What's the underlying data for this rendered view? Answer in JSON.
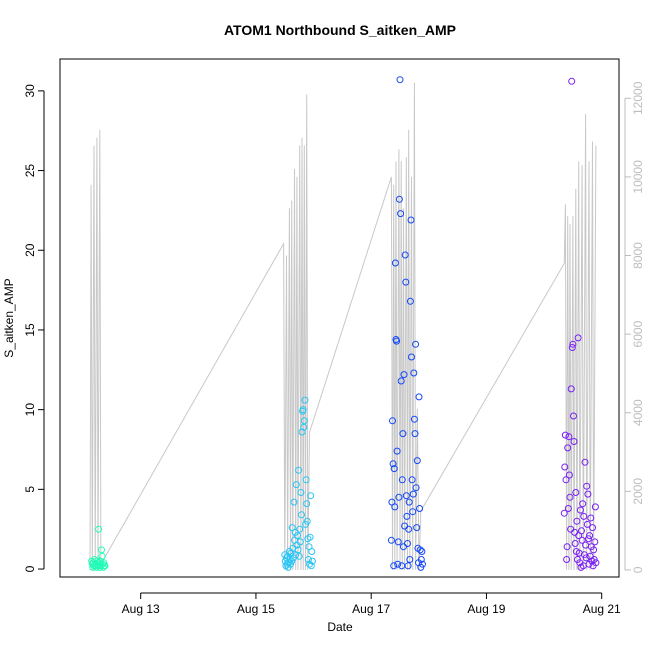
{
  "chart_data": {
    "type": "scatter",
    "title": "ATOM1 Northbound S_aitken_AMP",
    "xlabel": "Date",
    "ylabel": "S_aitken_AMP",
    "x_tick_labels": [
      "Aug 13",
      "Aug 15",
      "Aug 17",
      "Aug 19",
      "Aug 21"
    ],
    "x_tick_days": [
      13,
      15,
      17,
      19,
      21
    ],
    "xlim_days": [
      11.6,
      21.3
    ],
    "y_ticks": [
      0,
      5,
      10,
      15,
      20,
      25,
      30
    ],
    "ylim": [
      -0.5,
      32
    ],
    "y2_ticks": [
      0,
      2000,
      4000,
      6000,
      8000,
      10000,
      12000
    ],
    "y2lim": [
      -180,
      13000
    ],
    "colors": {
      "aug12": "#1ffcb6",
      "aug15": "#27c5f5",
      "aug17": "#1448f7",
      "aug20": "#7a1ff5",
      "secondary_line": "#c8c8c8",
      "right_axis": "#bdbdbd"
    },
    "series": [
      {
        "color_key": "aug12",
        "points": [
          [
            12.15,
            0.5
          ],
          [
            12.16,
            0.3
          ],
          [
            12.17,
            0.1
          ],
          [
            12.18,
            0.4
          ],
          [
            12.19,
            0.2
          ],
          [
            12.2,
            0.6
          ],
          [
            12.21,
            0.2
          ],
          [
            12.22,
            0.3
          ],
          [
            12.23,
            0.1
          ],
          [
            12.24,
            0.5
          ],
          [
            12.25,
            0.2
          ],
          [
            12.26,
            0.4
          ],
          [
            12.27,
            2.5
          ],
          [
            12.28,
            0.3
          ],
          [
            12.29,
            0.1
          ],
          [
            12.3,
            0.5
          ],
          [
            12.31,
            0.2
          ],
          [
            12.32,
            1.2
          ],
          [
            12.33,
            0.8
          ],
          [
            12.34,
            0.3
          ],
          [
            12.35,
            0.1
          ],
          [
            12.36,
            0.4
          ],
          [
            12.37,
            0.2
          ],
          [
            12.38,
            0.2
          ]
        ]
      },
      {
        "color_key": "aug15",
        "points": [
          [
            15.5,
            0.9
          ],
          [
            15.51,
            0.5
          ],
          [
            15.52,
            0.2
          ],
          [
            15.53,
            0.7
          ],
          [
            15.54,
            0.3
          ],
          [
            15.55,
            0.8
          ],
          [
            15.56,
            0.1
          ],
          [
            15.57,
            0.4
          ],
          [
            15.58,
            1.1
          ],
          [
            15.59,
            0.6
          ],
          [
            15.6,
            0.3
          ],
          [
            15.61,
            1.0
          ],
          [
            15.62,
            0.5
          ],
          [
            15.63,
            2.6
          ],
          [
            15.64,
            1.3
          ],
          [
            15.65,
            0.7
          ],
          [
            15.66,
            4.2
          ],
          [
            15.67,
            1.8
          ],
          [
            15.68,
            2.3
          ],
          [
            15.69,
            0.9
          ],
          [
            15.7,
            5.3
          ],
          [
            15.71,
            1.5
          ],
          [
            15.72,
            2.1
          ],
          [
            15.73,
            1.2
          ],
          [
            15.74,
            6.2
          ],
          [
            15.75,
            0.8
          ],
          [
            15.76,
            2.5
          ],
          [
            15.77,
            1.7
          ],
          [
            15.78,
            4.8
          ],
          [
            15.79,
            3.4
          ],
          [
            15.8,
            8.6
          ],
          [
            15.81,
            9.9
          ],
          [
            15.82,
            10.0
          ],
          [
            15.83,
            8.9
          ],
          [
            15.84,
            9.3
          ],
          [
            15.85,
            10.6
          ],
          [
            15.86,
            2.8
          ],
          [
            15.87,
            5.6
          ],
          [
            15.88,
            4.1
          ],
          [
            15.89,
            3.0
          ],
          [
            15.9,
            1.9
          ],
          [
            15.91,
            0.6
          ],
          [
            15.92,
            1.4
          ],
          [
            15.93,
            0.3
          ],
          [
            15.94,
            2.0
          ],
          [
            15.95,
            4.6
          ],
          [
            15.96,
            0.2
          ],
          [
            15.97,
            1.1
          ],
          [
            15.98,
            0.5
          ]
        ]
      },
      {
        "color_key": "aug17",
        "points": [
          [
            17.35,
            1.8
          ],
          [
            17.36,
            4.2
          ],
          [
            17.37,
            9.3
          ],
          [
            17.38,
            6.6
          ],
          [
            17.39,
            0.2
          ],
          [
            17.4,
            6.3
          ],
          [
            17.41,
            3.9
          ],
          [
            17.42,
            19.2
          ],
          [
            17.43,
            14.4
          ],
          [
            17.44,
            14.3
          ],
          [
            17.45,
            7.4
          ],
          [
            17.46,
            0.3
          ],
          [
            17.47,
            1.7
          ],
          [
            17.48,
            4.5
          ],
          [
            17.49,
            23.2
          ],
          [
            17.5,
            30.7
          ],
          [
            17.51,
            22.3
          ],
          [
            17.52,
            11.8
          ],
          [
            17.53,
            0.2
          ],
          [
            17.54,
            5.6
          ],
          [
            17.55,
            8.5
          ],
          [
            17.56,
            1.4
          ],
          [
            17.57,
            12.2
          ],
          [
            17.58,
            2.7
          ],
          [
            17.59,
            19.7
          ],
          [
            17.6,
            18.0
          ],
          [
            17.61,
            4.6
          ],
          [
            17.62,
            3.3
          ],
          [
            17.63,
            1.6
          ],
          [
            17.64,
            0.2
          ],
          [
            17.65,
            2.5
          ],
          [
            17.66,
            4.2
          ],
          [
            17.67,
            0.6
          ],
          [
            17.68,
            16.8
          ],
          [
            17.69,
            21.9
          ],
          [
            17.7,
            13.3
          ],
          [
            17.71,
            5.6
          ],
          [
            17.72,
            3.6
          ],
          [
            17.73,
            4.7
          ],
          [
            17.74,
            12.3
          ],
          [
            17.75,
            9.4
          ],
          [
            17.76,
            8.5
          ],
          [
            17.77,
            14.1
          ],
          [
            17.78,
            5.1
          ],
          [
            17.79,
            2.6
          ],
          [
            17.8,
            6.8
          ],
          [
            17.81,
            1.3
          ],
          [
            17.82,
            0.4
          ],
          [
            17.83,
            10.8
          ],
          [
            17.84,
            3.8
          ],
          [
            17.85,
            1.2
          ],
          [
            17.86,
            0.1
          ],
          [
            17.87,
            0.6
          ],
          [
            17.88,
            1.1
          ],
          [
            17.89,
            0.3
          ]
        ]
      },
      {
        "color_key": "aug20",
        "points": [
          [
            20.35,
            3.5
          ],
          [
            20.36,
            6.4
          ],
          [
            20.37,
            8.4
          ],
          [
            20.38,
            5.6
          ],
          [
            20.39,
            0.6
          ],
          [
            20.4,
            1.4
          ],
          [
            20.41,
            7.6
          ],
          [
            20.42,
            3.8
          ],
          [
            20.43,
            8.3
          ],
          [
            20.44,
            5.9
          ],
          [
            20.45,
            4.5
          ],
          [
            20.46,
            2.5
          ],
          [
            20.47,
            11.3
          ],
          [
            20.48,
            30.6
          ],
          [
            20.49,
            13.9
          ],
          [
            20.5,
            14.1
          ],
          [
            20.51,
            9.6
          ],
          [
            20.52,
            8.0
          ],
          [
            20.53,
            2.3
          ],
          [
            20.54,
            1.6
          ],
          [
            20.55,
            4.8
          ],
          [
            20.56,
            1.1
          ],
          [
            20.57,
            3.0
          ],
          [
            20.58,
            0.6
          ],
          [
            20.59,
            14.5
          ],
          [
            20.6,
            2.1
          ],
          [
            20.61,
            1.0
          ],
          [
            20.62,
            0.4
          ],
          [
            20.63,
            3.7
          ],
          [
            20.64,
            0.1
          ],
          [
            20.65,
            2.4
          ],
          [
            20.66,
            1.8
          ],
          [
            20.67,
            4.1
          ],
          [
            20.68,
            0.2
          ],
          [
            20.69,
            3.3
          ],
          [
            20.7,
            0.9
          ],
          [
            20.71,
            6.7
          ],
          [
            20.72,
            1.5
          ],
          [
            20.73,
            0.7
          ],
          [
            20.74,
            5.2
          ],
          [
            20.75,
            2.8
          ],
          [
            20.76,
            4.7
          ],
          [
            20.77,
            1.9
          ],
          [
            20.78,
            0.3
          ],
          [
            20.79,
            2.1
          ],
          [
            20.8,
            0.8
          ],
          [
            20.81,
            3.2
          ],
          [
            20.82,
            1.4
          ],
          [
            20.83,
            0.5
          ],
          [
            20.84,
            2.6
          ],
          [
            20.85,
            0.2
          ],
          [
            20.86,
            1.2
          ],
          [
            20.87,
            0.6
          ],
          [
            20.88,
            1.7
          ],
          [
            20.89,
            3.9
          ],
          [
            20.9,
            0.4
          ]
        ]
      }
    ],
    "secondary_series": {
      "axis": "right",
      "color_key": "secondary_line",
      "points": [
        [
          12.12,
          0
        ],
        [
          12.14,
          9800
        ],
        [
          12.16,
          0
        ],
        [
          12.19,
          10800
        ],
        [
          12.21,
          0
        ],
        [
          12.24,
          11000
        ],
        [
          12.26,
          0
        ],
        [
          12.29,
          11200
        ],
        [
          12.31,
          0
        ],
        [
          12.33,
          200
        ],
        [
          12.37,
          300
        ],
        [
          15.48,
          8300
        ],
        [
          15.5,
          0
        ],
        [
          15.53,
          8000
        ],
        [
          15.55,
          0
        ],
        [
          15.58,
          9200
        ],
        [
          15.6,
          0
        ],
        [
          15.62,
          9400
        ],
        [
          15.64,
          0
        ],
        [
          15.67,
          10200
        ],
        [
          15.69,
          0
        ],
        [
          15.71,
          10000
        ],
        [
          15.73,
          0
        ],
        [
          15.76,
          10800
        ],
        [
          15.78,
          0
        ],
        [
          15.8,
          11000
        ],
        [
          15.82,
          0
        ],
        [
          15.84,
          10800
        ],
        [
          15.86,
          0
        ],
        [
          15.88,
          12100
        ],
        [
          15.9,
          0
        ],
        [
          15.93,
          3500
        ],
        [
          17.35,
          10000
        ],
        [
          17.37,
          0
        ],
        [
          17.39,
          9800
        ],
        [
          17.41,
          0
        ],
        [
          17.43,
          10400
        ],
        [
          17.45,
          0
        ],
        [
          17.48,
          10700
        ],
        [
          17.5,
          0
        ],
        [
          17.52,
          10400
        ],
        [
          17.54,
          0
        ],
        [
          17.56,
          9200
        ],
        [
          17.58,
          0
        ],
        [
          17.61,
          10500
        ],
        [
          17.63,
          0
        ],
        [
          17.65,
          11200
        ],
        [
          17.67,
          0
        ],
        [
          17.7,
          10000
        ],
        [
          17.72,
          0
        ],
        [
          17.75,
          12400
        ],
        [
          17.77,
          0
        ],
        [
          17.8,
          4100
        ],
        [
          17.83,
          0
        ],
        [
          17.86,
          1500
        ],
        [
          20.35,
          7800
        ],
        [
          20.37,
          9300
        ],
        [
          20.39,
          0
        ],
        [
          20.41,
          9000
        ],
        [
          20.43,
          0
        ],
        [
          20.45,
          8800
        ],
        [
          20.47,
          0
        ],
        [
          20.5,
          9000
        ],
        [
          20.52,
          0
        ],
        [
          20.55,
          9700
        ],
        [
          20.57,
          0
        ],
        [
          20.6,
          10400
        ],
        [
          20.62,
          0
        ],
        [
          20.66,
          10300
        ],
        [
          20.68,
          0
        ],
        [
          20.72,
          11600
        ],
        [
          20.74,
          0
        ],
        [
          20.78,
          10400
        ],
        [
          20.8,
          0
        ],
        [
          20.84,
          10900
        ],
        [
          20.86,
          0
        ],
        [
          20.9,
          10800
        ]
      ]
    }
  }
}
